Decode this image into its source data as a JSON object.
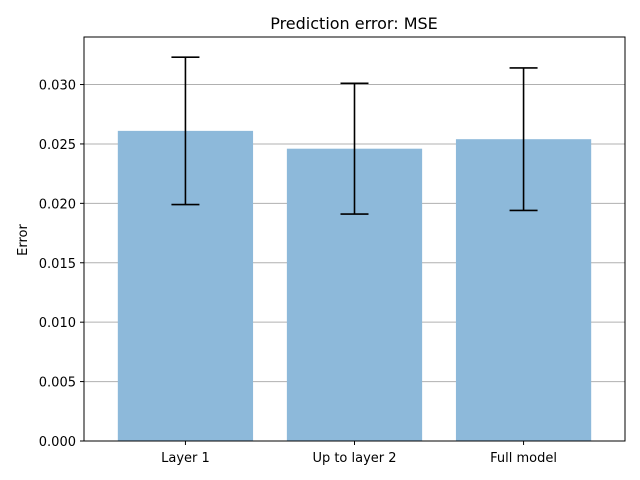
{
  "chart_data": {
    "type": "bar",
    "title": "Prediction error: MSE",
    "xlabel": "",
    "ylabel": "Error",
    "categories": [
      "Layer 1",
      "Up to layer 2",
      "Full model"
    ],
    "values": [
      0.0261,
      0.0246,
      0.0254
    ],
    "error": [
      0.0062,
      0.0055,
      0.006
    ],
    "ylim": [
      0,
      0.034
    ],
    "yticks": [
      0.0,
      0.005,
      0.01,
      0.015,
      0.02,
      0.025,
      0.03
    ],
    "ytick_labels": [
      "0.000",
      "0.005",
      "0.010",
      "0.015",
      "0.020",
      "0.025",
      "0.030"
    ],
    "grid": "y",
    "bar_color": "#8db9da",
    "errorbar_color": "#000000",
    "grid_color": "#b0b0b0"
  }
}
